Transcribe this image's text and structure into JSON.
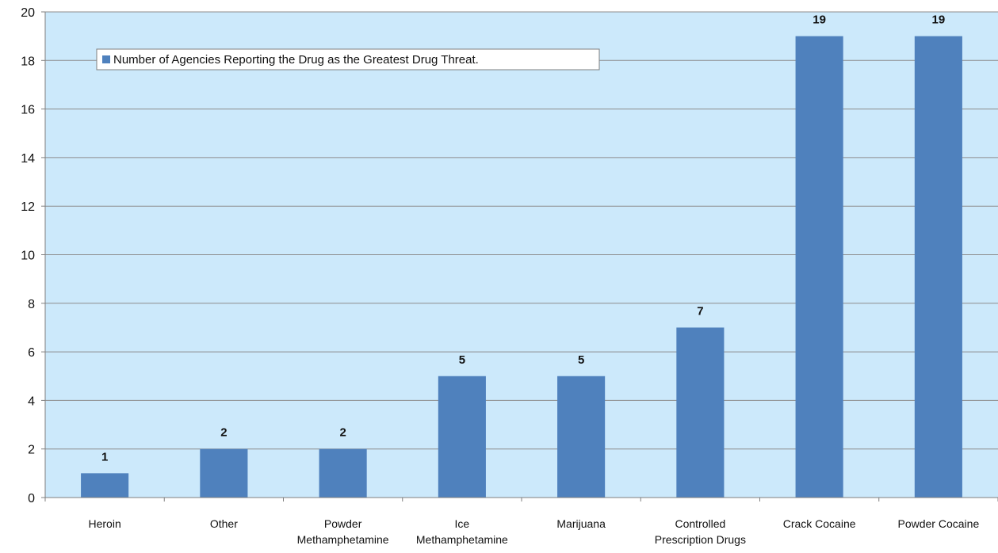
{
  "chart_data": {
    "type": "bar",
    "categories": [
      [
        "Heroin"
      ],
      [
        "Other"
      ],
      [
        "Powder",
        "Methamphetamine"
      ],
      [
        "Ice",
        "Methamphetamine"
      ],
      [
        "Marijuana"
      ],
      [
        "Controlled",
        "Prescription Drugs"
      ],
      [
        "Crack Cocaine"
      ],
      [
        "Powder Cocaine"
      ]
    ],
    "series": [
      {
        "name": "Number of Agencies Reporting the Drug as the Greatest Drug Threat.",
        "values": [
          1,
          2,
          2,
          5,
          5,
          7,
          19,
          19
        ]
      }
    ],
    "data_labels": [
      "1",
      "2",
      "2",
      "5",
      "5",
      "7",
      "19",
      "19"
    ],
    "y_ticks": [
      "0",
      "2",
      "4",
      "6",
      "8",
      "10",
      "12",
      "14",
      "16",
      "18",
      "20"
    ],
    "ylim": [
      0,
      20
    ],
    "grid": true,
    "legend_position": "top-left inside plot",
    "colors": {
      "plot_background": "#cce9fb",
      "bar": "#4f81bd",
      "gridline": "#8c8c8c",
      "axis": "#7f7f7f"
    }
  }
}
